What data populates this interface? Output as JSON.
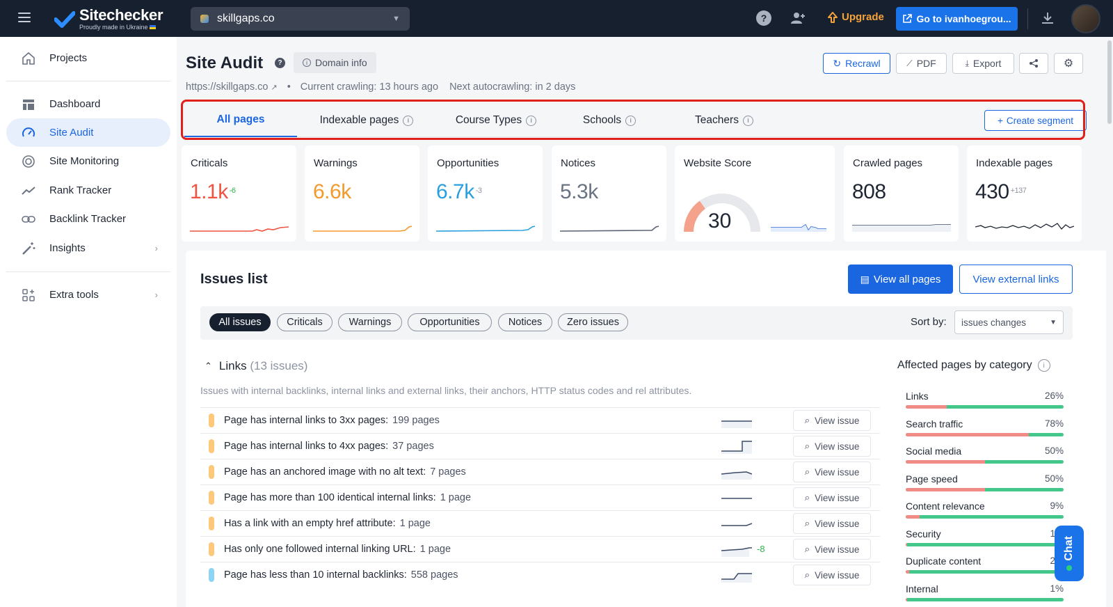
{
  "topbar": {
    "brand": "Sitechecker",
    "tagline": "Proudly made in Ukraine",
    "project": "skillgaps.co",
    "upgrade": "Upgrade",
    "goto": "Go to ivanhoegrou..."
  },
  "sidebar": {
    "items": [
      {
        "label": "Projects"
      },
      {
        "label": "Dashboard"
      },
      {
        "label": "Site Audit"
      },
      {
        "label": "Site Monitoring"
      },
      {
        "label": "Rank Tracker"
      },
      {
        "label": "Backlink Tracker"
      },
      {
        "label": "Insights"
      },
      {
        "label": "Extra tools"
      }
    ]
  },
  "header": {
    "title": "Site Audit",
    "domain_info": "Domain info",
    "url": "https://skillgaps.co",
    "crawling": "Current crawling: 13 hours ago",
    "autocrawl": "Next autocrawling: in 2 days",
    "recrawl": "Recrawl",
    "pdf": "PDF",
    "export": "Export"
  },
  "tabs": [
    {
      "label": "All pages"
    },
    {
      "label": "Indexable pages"
    },
    {
      "label": "Course Types"
    },
    {
      "label": "Schools"
    },
    {
      "label": "Teachers"
    }
  ],
  "create_segment": "Create segment",
  "cards": {
    "criticals": {
      "label": "Criticals",
      "value": "1.1k",
      "delta": "-6",
      "color": "#f0533f"
    },
    "warnings": {
      "label": "Warnings",
      "value": "6.6k",
      "color": "#f39a2c"
    },
    "opportunities": {
      "label": "Opportunities",
      "value": "6.7k",
      "delta": "-3",
      "color": "#2a9fe0"
    },
    "notices": {
      "label": "Notices",
      "value": "5.3k",
      "color": "#6b7383"
    },
    "score": {
      "label": "Website Score",
      "value": "30",
      "score_fraction": 0.3
    },
    "crawled": {
      "label": "Crawled pages",
      "value": "808"
    },
    "indexable": {
      "label": "Indexable pages",
      "value": "430",
      "delta": "+137"
    }
  },
  "issues": {
    "title": "Issues list",
    "view_all": "View all pages",
    "view_external": "View external links",
    "filters": [
      "All issues",
      "Criticals",
      "Warnings",
      "Opportunities",
      "Notices",
      "Zero issues"
    ],
    "sort_label": "Sort by:",
    "sort_value": "issues changes",
    "group_title": "Links",
    "group_count": "(13 issues)",
    "group_desc": "Issues with internal backlinks, internal links and external links, their anchors, HTTP status codes and rel attributes.",
    "view_issue": "View issue",
    "rows": [
      {
        "text": "Page has internal links to 3xx pages:",
        "count": "199 pages",
        "color": "#fdc87a"
      },
      {
        "text": "Page has internal links to 4xx pages:",
        "count": "37 pages",
        "color": "#fdc87a"
      },
      {
        "text": "Page has an anchored image with no alt text:",
        "count": "7 pages",
        "color": "#fdc87a"
      },
      {
        "text": "Page has more than 100 identical internal links:",
        "count": "1 page",
        "color": "#fdc87a"
      },
      {
        "text": "Has a link with an empty href attribute:",
        "count": "1 page",
        "color": "#fdc87a"
      },
      {
        "text": "Has only one followed internal linking URL:",
        "count": "1 page",
        "color": "#fdc87a",
        "delta": "-8"
      },
      {
        "text": "Page has less than 10 internal backlinks:",
        "count": "558 pages",
        "color": "#8fd3f5"
      }
    ],
    "categories_title": "Affected pages by category",
    "categories": [
      {
        "name": "Links",
        "pct": "26%",
        "value": 0.26
      },
      {
        "name": "Search traffic",
        "pct": "78%",
        "value": 0.78
      },
      {
        "name": "Social media",
        "pct": "50%",
        "value": 0.5
      },
      {
        "name": "Page speed",
        "pct": "50%",
        "value": 0.5
      },
      {
        "name": "Content relevance",
        "pct": "9%",
        "value": 0.09
      },
      {
        "name": "Security",
        "pct": "1%",
        "value": 0.01
      },
      {
        "name": "Duplicate content",
        "pct": "2%",
        "value": 0.02
      },
      {
        "name": "Internal",
        "pct": "1%",
        "value": 0.01
      }
    ]
  },
  "chat": "Chat"
}
